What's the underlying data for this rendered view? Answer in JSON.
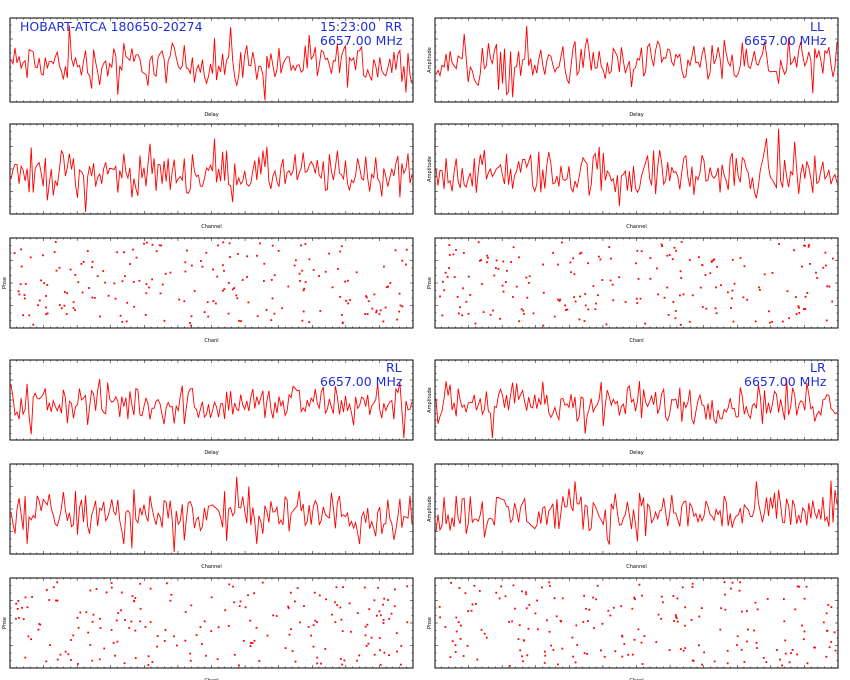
{
  "colors": {
    "trace": "#ff0000",
    "overlay_text": "#1f2fd8",
    "frame": "#000000",
    "background": "#ffffff"
  },
  "header": {
    "source": "HOBART-ATCA 180650-20274",
    "time": "15:23:00"
  },
  "chart_data": [
    {
      "id": "rr-delay",
      "type": "line",
      "polarization": "RR",
      "frequency": "6657.00 MHz",
      "xlabel": "Delay",
      "ylabel": "",
      "noise": 1.0,
      "points": 200
    },
    {
      "id": "rr-channel",
      "type": "line",
      "polarization": "RR",
      "xlabel": "Channel",
      "ylabel": "",
      "noise": 1.0,
      "points": 200
    },
    {
      "id": "rr-phase",
      "type": "scatter",
      "polarization": "RR",
      "xlabel": "Chanl",
      "ylabel": "Phse",
      "points": 200
    },
    {
      "id": "ll-delay",
      "type": "line",
      "polarization": "LL",
      "frequency": "6657.00 MHz",
      "xlabel": "Delay",
      "ylabel": "Amplitude",
      "noise": 1.0,
      "points": 200
    },
    {
      "id": "ll-channel",
      "type": "line",
      "polarization": "LL",
      "xlabel": "Channel",
      "ylabel": "Amplitude",
      "noise": 1.0,
      "points": 200
    },
    {
      "id": "ll-phase",
      "type": "scatter",
      "polarization": "LL",
      "xlabel": "Chanl",
      "ylabel": "Phse",
      "points": 200
    },
    {
      "id": "rl-delay",
      "type": "line",
      "polarization": "RL",
      "frequency": "6657.00 MHz",
      "xlabel": "Delay",
      "ylabel": "",
      "noise": 1.0,
      "points": 200
    },
    {
      "id": "rl-channel",
      "type": "line",
      "polarization": "RL",
      "xlabel": "Channel",
      "ylabel": "",
      "noise": 1.0,
      "points": 200
    },
    {
      "id": "rl-phase",
      "type": "scatter",
      "polarization": "RL",
      "xlabel": "Chanl",
      "ylabel": "Phse",
      "points": 200
    },
    {
      "id": "lr-delay",
      "type": "line",
      "polarization": "LR",
      "frequency": "6657.00 MHz",
      "xlabel": "Delay",
      "ylabel": "Amplitude",
      "noise": 1.0,
      "points": 200
    },
    {
      "id": "lr-channel",
      "type": "line",
      "polarization": "LR",
      "xlabel": "Channel",
      "ylabel": "Amplitude",
      "noise": 1.0,
      "points": 200
    },
    {
      "id": "lr-phase",
      "type": "scatter",
      "polarization": "LR",
      "xlabel": "Chanl",
      "ylabel": "Phse",
      "points": 200
    }
  ]
}
